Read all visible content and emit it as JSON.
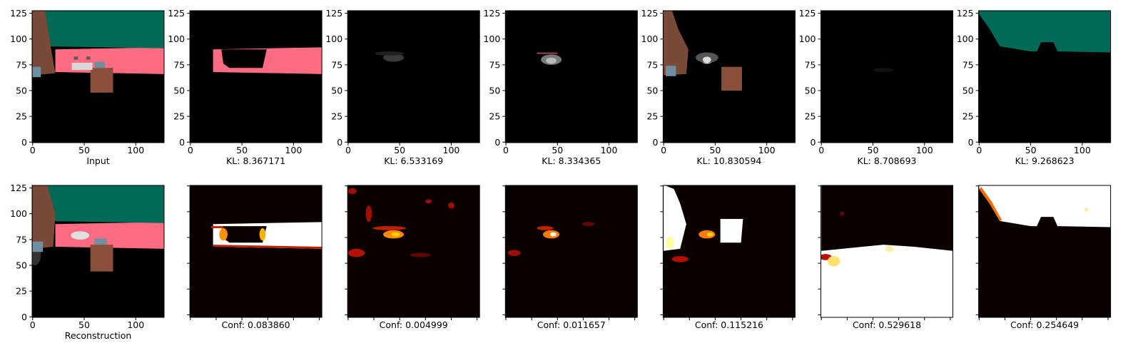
{
  "chart_data": [
    {
      "type": "image",
      "xlabel": "Input",
      "xlim": [
        -0.5,
        127.5
      ],
      "ylim": [
        127.5,
        -0.5
      ],
      "xticks": [
        0,
        50,
        100
      ],
      "yticks": [
        0,
        25,
        50,
        75,
        100,
        125
      ]
    },
    {
      "type": "image",
      "xlabel": "KL: 8.367171",
      "xlim": [
        -0.5,
        127.5
      ],
      "ylim": [
        127.5,
        -0.5
      ],
      "xticks": [
        0,
        50,
        100
      ],
      "yticks": [
        0,
        25,
        50,
        75,
        100,
        125
      ]
    },
    {
      "type": "image",
      "xlabel": "KL: 6.533169",
      "xlim": [
        -0.5,
        127.5
      ],
      "ylim": [
        127.5,
        -0.5
      ],
      "xticks": [
        0,
        50,
        100
      ],
      "yticks": [
        0,
        25,
        50,
        75,
        100,
        125
      ]
    },
    {
      "type": "image",
      "xlabel": "KL: 8.334365",
      "xlim": [
        -0.5,
        127.5
      ],
      "ylim": [
        127.5,
        -0.5
      ],
      "xticks": [
        0,
        50,
        100
      ],
      "yticks": [
        0,
        25,
        50,
        75,
        100,
        125
      ]
    },
    {
      "type": "image",
      "xlabel": "KL: 10.830594",
      "xlim": [
        -0.5,
        127.5
      ],
      "ylim": [
        127.5,
        -0.5
      ],
      "xticks": [
        0,
        50,
        100
      ],
      "yticks": [
        0,
        25,
        50,
        75,
        100,
        125
      ]
    },
    {
      "type": "image",
      "xlabel": "KL: 8.708693",
      "xlim": [
        -0.5,
        127.5
      ],
      "ylim": [
        127.5,
        -0.5
      ],
      "xticks": [
        0,
        50,
        100
      ],
      "yticks": [
        0,
        25,
        50,
        75,
        100,
        125
      ]
    },
    {
      "type": "image",
      "xlabel": "KL: 9.268623",
      "xlim": [
        -0.5,
        127.5
      ],
      "ylim": [
        127.5,
        -0.5
      ],
      "xticks": [
        0,
        50,
        100
      ],
      "yticks": [
        0,
        25,
        50,
        75,
        100,
        125
      ]
    },
    {
      "type": "image",
      "xlabel": "Reconstruction",
      "xlim": [
        -0.5,
        127.5
      ],
      "ylim": [
        127.5,
        -0.5
      ],
      "xticks": [
        0,
        50,
        100
      ],
      "yticks": [
        0,
        25,
        50,
        75,
        100,
        125
      ]
    },
    {
      "type": "image",
      "xlabel": "Conf: 0.083860",
      "xlim": [
        -0.5,
        127.5
      ],
      "ylim": [
        127.5,
        -0.5
      ]
    },
    {
      "type": "image",
      "xlabel": "Conf: 0.004999",
      "xlim": [
        -0.5,
        127.5
      ],
      "ylim": [
        127.5,
        -0.5
      ]
    },
    {
      "type": "image",
      "xlabel": "Conf: 0.011657",
      "xlim": [
        -0.5,
        127.5
      ],
      "ylim": [
        127.5,
        -0.5
      ]
    },
    {
      "type": "image",
      "xlabel": "Conf: 0.115216",
      "xlim": [
        -0.5,
        127.5
      ],
      "ylim": [
        127.5,
        -0.5
      ]
    },
    {
      "type": "image",
      "xlabel": "Conf: 0.529618",
      "xlim": [
        -0.5,
        127.5
      ],
      "ylim": [
        127.5,
        -0.5
      ]
    },
    {
      "type": "image",
      "xlabel": "Conf: 0.254649",
      "xlim": [
        -0.5,
        127.5
      ],
      "ylim": [
        127.5,
        -0.5
      ]
    }
  ]
}
